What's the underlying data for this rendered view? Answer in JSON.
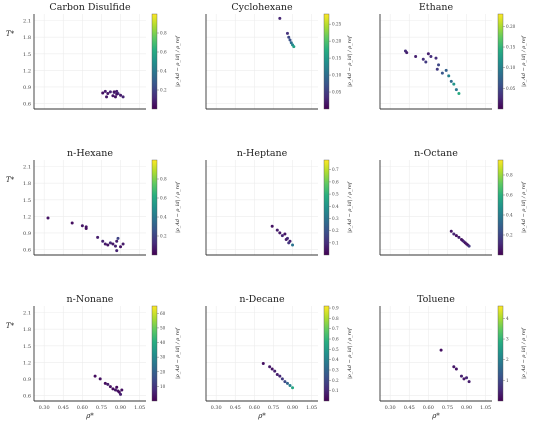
{
  "figure": {
    "colormap": [
      "#440154",
      "#472d7b",
      "#3b528b",
      "#2c728e",
      "#21918c",
      "#28ae80",
      "#5ec962",
      "#addc30",
      "#fde725"
    ],
    "xlabel": "ρ*",
    "ylabel": "T*",
    "colorbar_label": "|ρ_Ad − ρ_ld| / ρ_ref",
    "x_ticks": [
      "0.30",
      "0.45",
      "0.60",
      "0.75",
      "0.90",
      "1.05"
    ],
    "y_ticks": [
      "0.6",
      "0.9",
      "1.2",
      "1.5",
      "1.8",
      "2.1"
    ]
  },
  "chart_data": [
    {
      "type": "scatter",
      "title": "Carbon Disulfide",
      "xlim": [
        0.22,
        1.1
      ],
      "ylim": [
        0.5,
        2.22
      ],
      "clim": [
        0.0,
        1.0
      ],
      "cbar_ticks": [
        "0.2",
        "0.4",
        "0.6",
        "0.8"
      ],
      "x": [
        0.76,
        0.78,
        0.8,
        0.79,
        0.82,
        0.84,
        0.85,
        0.86,
        0.87,
        0.88,
        0.9,
        0.92,
        0.85,
        0.87
      ],
      "y": [
        0.79,
        0.82,
        0.78,
        0.72,
        0.81,
        0.74,
        0.8,
        0.72,
        0.82,
        0.78,
        0.75,
        0.72,
        0.81,
        0.77
      ],
      "c": [
        0.05,
        0.08,
        0.05,
        0.07,
        0.1,
        0.06,
        0.12,
        0.05,
        0.09,
        0.14,
        0.07,
        0.1,
        0.05,
        0.06
      ]
    },
    {
      "type": "scatter",
      "title": "Cyclohexane",
      "xlim": [
        0.22,
        1.1
      ],
      "ylim": [
        0.5,
        2.22
      ],
      "clim": [
        0.0,
        0.28
      ],
      "cbar_ticks": [
        "0.05",
        "0.10",
        "0.15",
        "0.20",
        "0.25"
      ],
      "x": [
        0.8,
        0.86,
        0.87,
        0.88,
        0.89,
        0.9,
        0.91
      ],
      "y": [
        2.14,
        1.87,
        1.8,
        1.75,
        1.7,
        1.66,
        1.63
      ],
      "c": [
        0.03,
        0.04,
        0.06,
        0.07,
        0.1,
        0.13,
        0.16
      ]
    },
    {
      "type": "scatter",
      "title": "Ethane",
      "xlim": [
        0.22,
        1.1
      ],
      "ylim": [
        0.5,
        2.22
      ],
      "clim": [
        0.0,
        0.23
      ],
      "cbar_ticks": [
        "0.05",
        "0.10",
        "0.15",
        "0.20"
      ],
      "x": [
        0.42,
        0.43,
        0.5,
        0.56,
        0.6,
        0.58,
        0.62,
        0.66,
        0.68,
        0.67,
        0.74,
        0.71,
        0.76,
        0.78,
        0.8,
        0.82,
        0.84
      ],
      "y": [
        1.55,
        1.52,
        1.45,
        1.4,
        1.5,
        1.35,
        1.45,
        1.42,
        1.3,
        1.22,
        1.2,
        1.15,
        1.1,
        1.0,
        0.95,
        0.85,
        0.78
      ],
      "c": [
        0.03,
        0.02,
        0.02,
        0.03,
        0.02,
        0.04,
        0.03,
        0.03,
        0.05,
        0.04,
        0.07,
        0.06,
        0.1,
        0.08,
        0.12,
        0.09,
        0.14
      ]
    },
    {
      "type": "scatter",
      "title": "n-Hexane",
      "xlim": [
        0.22,
        1.1
      ],
      "ylim": [
        0.5,
        2.22
      ],
      "clim": [
        0.0,
        1.0
      ],
      "cbar_ticks": [
        "0.2",
        "0.4",
        "0.6",
        "0.8"
      ],
      "x": [
        0.33,
        0.52,
        0.6,
        0.63,
        0.63,
        0.72,
        0.76,
        0.78,
        0.8,
        0.82,
        0.84,
        0.86,
        0.88,
        0.87,
        0.9,
        0.92,
        0.87
      ],
      "y": [
        1.17,
        1.08,
        1.03,
        1.01,
        0.98,
        0.82,
        0.75,
        0.7,
        0.68,
        0.72,
        0.7,
        0.66,
        0.8,
        0.75,
        0.65,
        0.7,
        0.58
      ],
      "c": [
        0.05,
        0.04,
        0.06,
        0.05,
        0.04,
        0.08,
        0.1,
        0.07,
        0.05,
        0.12,
        0.06,
        0.09,
        0.2,
        0.08,
        0.05,
        0.07,
        0.1
      ]
    },
    {
      "type": "scatter",
      "title": "n-Heptane",
      "xlim": [
        0.22,
        1.1
      ],
      "ylim": [
        0.5,
        2.22
      ],
      "clim": [
        0.0,
        0.78
      ],
      "cbar_ticks": [
        "0.1",
        "0.2",
        "0.3",
        "0.4",
        "0.5",
        "0.6",
        "0.7"
      ],
      "x": [
        0.74,
        0.78,
        0.8,
        0.82,
        0.84,
        0.86,
        0.88,
        0.9,
        0.85,
        0.87
      ],
      "y": [
        1.02,
        0.95,
        0.9,
        0.85,
        0.88,
        0.8,
        0.75,
        0.68,
        0.78,
        0.72
      ],
      "c": [
        0.04,
        0.06,
        0.05,
        0.08,
        0.04,
        0.1,
        0.07,
        0.3,
        0.06,
        0.12
      ]
    },
    {
      "type": "scatter",
      "title": "n-Octane",
      "xlim": [
        0.22,
        1.1
      ],
      "ylim": [
        0.5,
        2.22
      ],
      "clim": [
        0.0,
        0.95
      ],
      "cbar_ticks": [
        "0.2",
        "0.4",
        "0.6",
        "0.8"
      ],
      "x": [
        0.78,
        0.8,
        0.82,
        0.84,
        0.86,
        0.87,
        0.88,
        0.89,
        0.9,
        0.91,
        0.92
      ],
      "y": [
        0.93,
        0.88,
        0.85,
        0.82,
        0.78,
        0.76,
        0.74,
        0.72,
        0.7,
        0.68,
        0.66
      ],
      "c": [
        0.05,
        0.1,
        0.04,
        0.08,
        0.06,
        0.05,
        0.12,
        0.04,
        0.07,
        0.05,
        0.15
      ]
    },
    {
      "type": "scatter",
      "title": "n-Nonane",
      "xlim": [
        0.22,
        1.1
      ],
      "ylim": [
        0.5,
        2.22
      ],
      "clim": [
        0.0,
        65
      ],
      "cbar_ticks": [
        "10",
        "20",
        "30",
        "40",
        "50",
        "60"
      ],
      "x": [
        0.7,
        0.74,
        0.78,
        0.8,
        0.82,
        0.84,
        0.86,
        0.88,
        0.9,
        0.89,
        0.91,
        0.87
      ],
      "y": [
        0.95,
        0.9,
        0.82,
        0.8,
        0.76,
        0.72,
        0.7,
        0.68,
        0.62,
        0.66,
        0.7,
        0.75
      ],
      "c": [
        2,
        3,
        2,
        5,
        3,
        2,
        4,
        3,
        6,
        2,
        3,
        2
      ]
    },
    {
      "type": "scatter",
      "title": "n-Decane",
      "xlim": [
        0.22,
        1.1
      ],
      "ylim": [
        0.5,
        2.22
      ],
      "clim": [
        0.0,
        0.92
      ],
      "cbar_ticks": [
        "0.1",
        "0.2",
        "0.3",
        "0.4",
        "0.5",
        "0.6",
        "0.7",
        "0.8",
        "0.9"
      ],
      "x": [
        0.67,
        0.72,
        0.74,
        0.76,
        0.78,
        0.8,
        0.82,
        0.84,
        0.86,
        0.88,
        0.9
      ],
      "y": [
        1.18,
        1.12,
        1.08,
        1.04,
        0.98,
        0.95,
        0.9,
        0.85,
        0.82,
        0.78,
        0.74
      ],
      "c": [
        0.04,
        0.06,
        0.05,
        0.08,
        0.07,
        0.1,
        0.15,
        0.2,
        0.3,
        0.4,
        0.55
      ]
    },
    {
      "type": "scatter",
      "title": "Toluene",
      "xlim": [
        0.22,
        1.1
      ],
      "ylim": [
        0.5,
        2.22
      ],
      "clim": [
        0.0,
        4.6
      ],
      "cbar_ticks": [
        "1",
        "2",
        "3",
        "4"
      ],
      "x": [
        0.7,
        0.8,
        0.82,
        0.86,
        0.88,
        0.9,
        0.92
      ],
      "y": [
        1.42,
        1.12,
        1.08,
        0.95,
        0.9,
        0.92,
        0.85
      ],
      "c": [
        0.2,
        0.3,
        0.25,
        0.4,
        0.3,
        0.5,
        0.35
      ]
    }
  ]
}
